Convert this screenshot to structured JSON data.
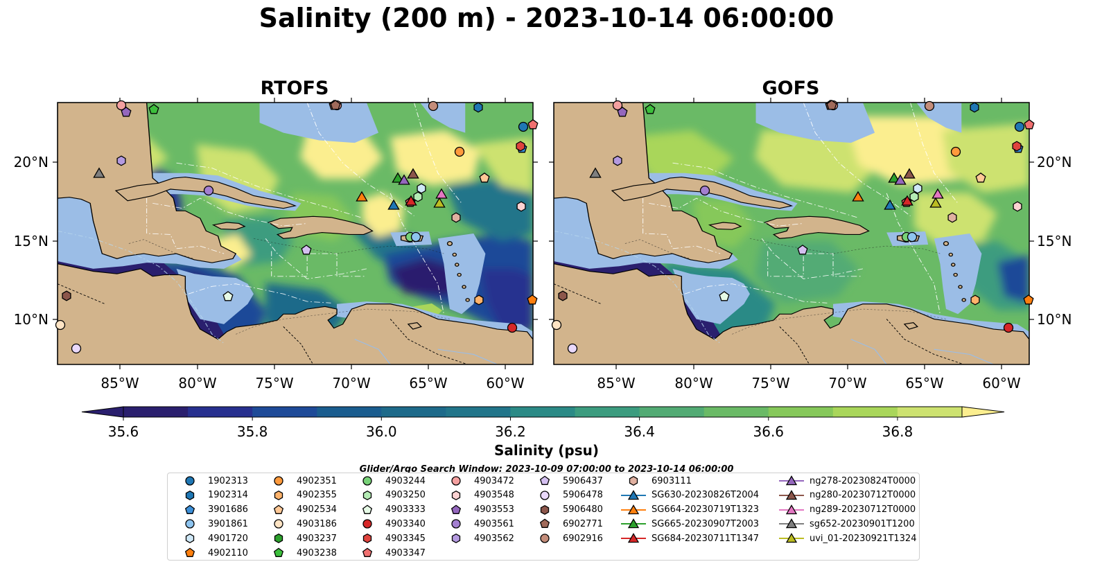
{
  "title": "Salinity (200 m) - 2023-10-14 06:00:00",
  "panels": [
    {
      "title": "RTOFS"
    },
    {
      "title": "GOFS"
    }
  ],
  "axes": {
    "lon_ticks": [
      "85°W",
      "80°W",
      "75°W",
      "70°W",
      "65°W",
      "60°W"
    ],
    "lat_ticks": [
      "20°N",
      "15°N",
      "10°N"
    ]
  },
  "colorbar": {
    "label": "Salinity (psu)",
    "ticks": [
      "35.6",
      "35.8",
      "36.0",
      "36.2",
      "36.4",
      "36.6",
      "36.8"
    ],
    "levels": [
      35.6,
      35.7,
      35.8,
      35.9,
      36.0,
      36.1,
      36.2,
      36.3,
      36.4,
      36.5,
      36.6,
      36.7,
      36.8,
      36.9
    ],
    "extend": "both",
    "colors": [
      "#2a1f6e",
      "#27308f",
      "#1e4a98",
      "#1a5d8f",
      "#1d6a8a",
      "#21758a",
      "#2b8a86",
      "#3c9c7f",
      "#52ab74",
      "#6aba66",
      "#86c85a",
      "#a9d65a",
      "#cde270",
      "#fbee8f"
    ]
  },
  "map_colors": {
    "land": "#d2b48c",
    "shelf": "#9bbde6",
    "deep_pacific": "#2a1f6e"
  },
  "search_window": "Glider/Argo Search Window: 2023-10-09 07:00:00 to 2023-10-14 06:00:00",
  "legend": [
    {
      "label": "1902313",
      "marker": "circle",
      "color": "#1f77b4"
    },
    {
      "label": "1902314",
      "marker": "hexagon",
      "color": "#1f77b4"
    },
    {
      "label": "3901686",
      "marker": "pentagon",
      "color": "#3c8fd8"
    },
    {
      "label": "3901861",
      "marker": "circle",
      "color": "#8ec4ef"
    },
    {
      "label": "4901720",
      "marker": "hexagon",
      "color": "#cfe8f7"
    },
    {
      "label": "4902110",
      "marker": "pentagon",
      "color": "#ff7f0e"
    },
    {
      "label": "4902351",
      "marker": "circle",
      "color": "#ff9a3c"
    },
    {
      "label": "4902355",
      "marker": "hexagon",
      "color": "#ffb36b"
    },
    {
      "label": "4902534",
      "marker": "pentagon",
      "color": "#ffc896"
    },
    {
      "label": "4903186",
      "marker": "circle",
      "color": "#ffe4c4"
    },
    {
      "label": "4903237",
      "marker": "hexagon",
      "color": "#2ca02c"
    },
    {
      "label": "4903238",
      "marker": "pentagon",
      "color": "#3cbf3c"
    },
    {
      "label": "4903244",
      "marker": "circle",
      "color": "#78d278"
    },
    {
      "label": "4903250",
      "marker": "hexagon",
      "color": "#b4ebb4"
    },
    {
      "label": "4903333",
      "marker": "pentagon",
      "color": "#e6fae6"
    },
    {
      "label": "4903340",
      "marker": "circle",
      "color": "#d62728"
    },
    {
      "label": "4903345",
      "marker": "hexagon",
      "color": "#e0443e"
    },
    {
      "label": "4903347",
      "marker": "pentagon",
      "color": "#f07070"
    },
    {
      "label": "4903472",
      "marker": "circle",
      "color": "#f4a0a0"
    },
    {
      "label": "4903548",
      "marker": "hexagon",
      "color": "#fbd2d2"
    },
    {
      "label": "4903553",
      "marker": "pentagon",
      "color": "#9467bd"
    },
    {
      "label": "4903561",
      "marker": "circle",
      "color": "#a37fd0"
    },
    {
      "label": "4903562",
      "marker": "hexagon",
      "color": "#b49ae0"
    },
    {
      "label": "5906437",
      "marker": "pentagon",
      "color": "#d4bff0"
    },
    {
      "label": "5906478",
      "marker": "circle",
      "color": "#ead9fb"
    },
    {
      "label": "5906480",
      "marker": "hexagon",
      "color": "#8c564b"
    },
    {
      "label": "6902771",
      "marker": "pentagon",
      "color": "#a06a5a"
    },
    {
      "label": "6902916",
      "marker": "circle",
      "color": "#c48d7a"
    },
    {
      "label": "6903111",
      "marker": "hexagon",
      "color": "#e0b0a0"
    },
    {
      "label": "SG630-20230826T2004",
      "marker": "triangle",
      "color": "#1f77b4"
    },
    {
      "label": "SG664-20230719T1323",
      "marker": "triangle",
      "color": "#ff7f0e"
    },
    {
      "label": "SG665-20230907T2003",
      "marker": "triangle",
      "color": "#2ca02c"
    },
    {
      "label": "SG684-20230711T1347",
      "marker": "triangle",
      "color": "#d62728"
    },
    {
      "label": "ng278-20230824T0000",
      "marker": "triangle",
      "color": "#9467bd"
    },
    {
      "label": "ng280-20230712T0000",
      "marker": "triangle",
      "color": "#8c564b"
    },
    {
      "label": "ng289-20230712T0000",
      "marker": "triangle",
      "color": "#e377c2"
    },
    {
      "label": "sg652-20230901T1200",
      "marker": "triangle",
      "color": "#7f7f7f"
    },
    {
      "label": "uvi_01-20230921T1324",
      "marker": "triangle",
      "color": "#bcbd22"
    }
  ]
}
